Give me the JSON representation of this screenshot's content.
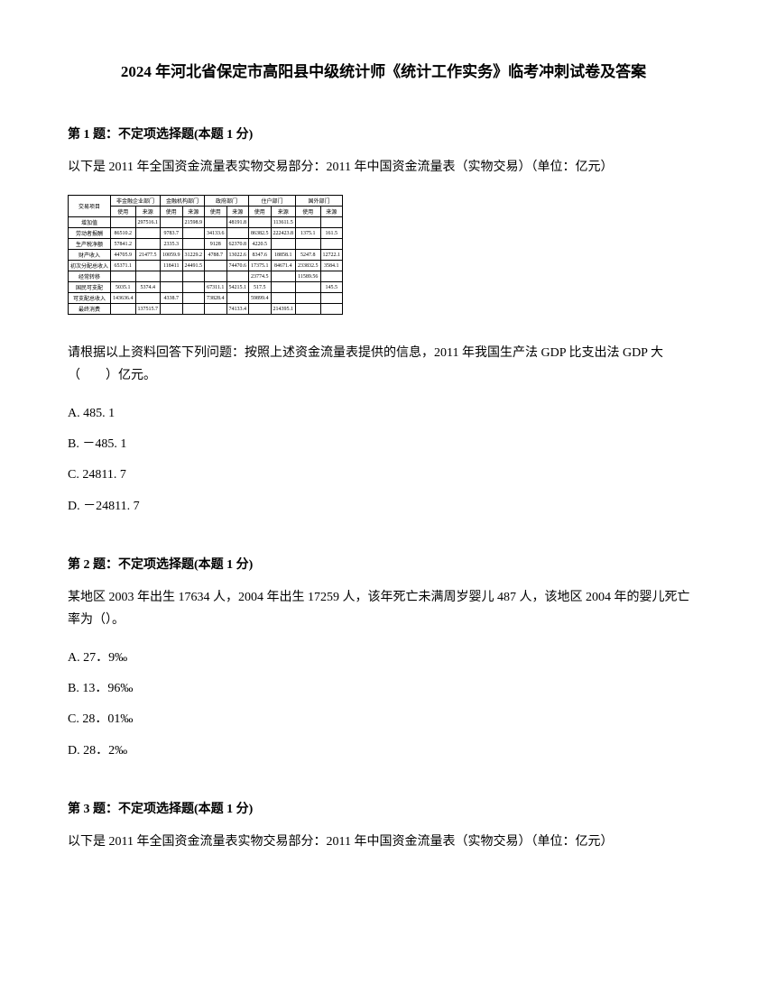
{
  "title": "2024 年河北省保定市高阳县中级统计师《统计工作实务》临考冲刺试卷及答案",
  "q1": {
    "header": "第 1 题：不定项选择题(本题 1 分)",
    "intro": "以下是 2011 年全国资金流量表实物交易部分：2011 年中国资金流量表（实物交易）（单位：亿元）",
    "table": {
      "headers": [
        "机构部门",
        "非金融企业部门",
        "金融机构部门",
        "政府部门",
        "住户部门",
        "国外部门"
      ],
      "subheaders": [
        "交易项目",
        "使用",
        "来源",
        "使用",
        "来源",
        "使用",
        "来源",
        "使用",
        "来源",
        "使用",
        "来源"
      ],
      "rows": [
        [
          "增加值",
          "",
          "297516.1",
          "",
          "21598.9",
          "",
          "48191.8",
          "",
          "113611.5",
          "",
          "",
          "",
          "113513.1"
        ],
        [
          "劳动者报酬",
          "86510.2",
          "",
          "9783.7",
          "",
          "34133.6",
          "",
          "86382.5",
          "222423.8",
          "1375.1",
          "161.5"
        ],
        [
          "生产税净额",
          "57841.2",
          "",
          "2335.3",
          "",
          "9128",
          "62370.8",
          "4220.5",
          "",
          "",
          ""
        ],
        [
          "财产收入",
          "44705.9",
          "21477.5",
          "10059.9",
          "31229.2",
          "4788.7",
          "13022.6",
          "8347.6",
          "18858.1",
          "5247.8",
          "12722.1"
        ],
        [
          "初次分配总收入",
          "65371.1",
          "",
          "118411",
          "24491.5",
          "",
          "74470.6",
          "17375.1",
          "84671.4",
          "233832.5",
          "3584.1",
          "2145.1"
        ],
        [
          "经常转移",
          "",
          "",
          "",
          "",
          "",
          "",
          "23774.5",
          "",
          "11589.56",
          "",
          ""
        ],
        [
          "国民可支配",
          "5035.1",
          "5374.4",
          "",
          "",
          "67311.1",
          "54215.1",
          "517.5",
          "",
          "",
          "145.5",
          "111.1"
        ],
        [
          "可支配总收入",
          "143636.4",
          "",
          "4338.7",
          "",
          "73828.4",
          "",
          "59899.4",
          "",
          "",
          ""
        ],
        [
          "最终消费",
          "",
          "137515.7",
          "",
          "",
          "",
          "74133.4",
          "",
          "214395.1",
          "",
          ""
        ]
      ]
    },
    "question": "请根据以上资料回答下列问题：按照上述资金流量表提供的信息，2011 年我国生产法 GDP 比支出法 GDP 大（　　）亿元。",
    "optionA": "A. 485. 1",
    "optionB": "B. －485. 1",
    "optionC": "C. 24811. 7",
    "optionD": "D. －24811. 7"
  },
  "q2": {
    "header": "第 2 题：不定项选择题(本题 1 分)",
    "question": "某地区 2003 年出生 17634 人，2004 年出生 17259 人，该年死亡未满周岁婴儿 487 人，该地区 2004 年的婴儿死亡率为（）。",
    "optionA": "A. 27．9‰",
    "optionB": "B. 13．96‰",
    "optionC": "C. 28．01‰",
    "optionD": "D. 28．2‰"
  },
  "q3": {
    "header": "第 3 题：不定项选择题(本题 1 分)",
    "intro": "以下是 2011 年全国资金流量表实物交易部分：2011 年中国资金流量表（实物交易）（单位：亿元）"
  }
}
